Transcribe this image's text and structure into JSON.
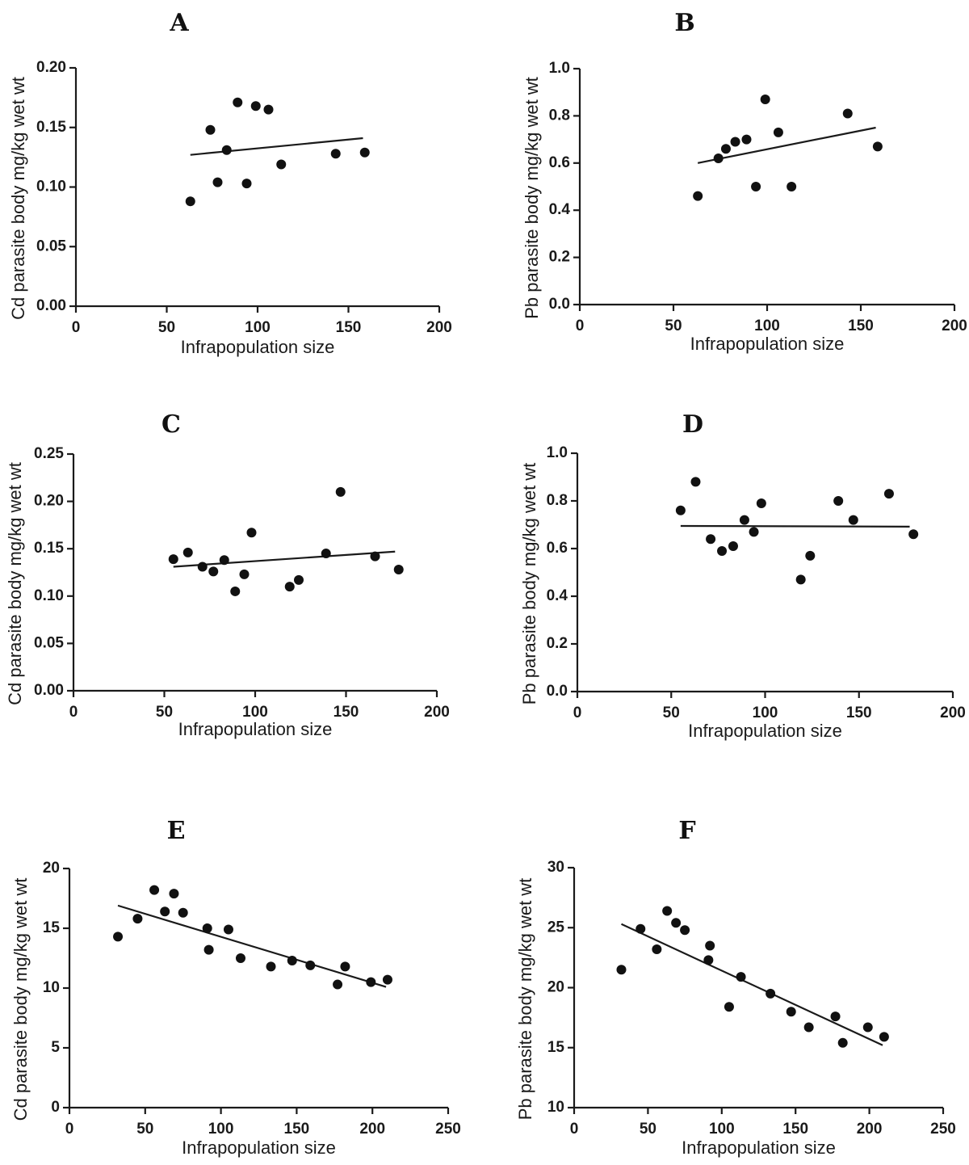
{
  "chart_data": [
    {
      "type": "scatter",
      "panel": "A",
      "xlabel": "Infrapopulation size",
      "ylabel": "Cd parasite body mg/kg wet wt",
      "xlim": [
        0,
        200
      ],
      "ylim": [
        0,
        0.2
      ],
      "xticks": [
        "0",
        "50",
        "100",
        "150",
        "200"
      ],
      "yticks": [
        "0.00",
        "0.05",
        "0.10",
        "0.15",
        "0.20"
      ],
      "points": [
        [
          63,
          0.088
        ],
        [
          74,
          0.148
        ],
        [
          78,
          0.104
        ],
        [
          83,
          0.131
        ],
        [
          89,
          0.171
        ],
        [
          94,
          0.103
        ],
        [
          99,
          0.168
        ],
        [
          106,
          0.165
        ],
        [
          113,
          0.119
        ],
        [
          143,
          0.128
        ],
        [
          159,
          0.129
        ]
      ],
      "fit_line": [
        [
          63,
          0.127
        ],
        [
          158,
          0.141
        ]
      ]
    },
    {
      "type": "scatter",
      "panel": "B",
      "xlabel": "Infrapopulation size",
      "ylabel": "Pb parasite body mg/kg wet wt",
      "xlim": [
        0,
        200
      ],
      "ylim": [
        0,
        1.0
      ],
      "xticks": [
        "0",
        "50",
        "100",
        "150",
        "200"
      ],
      "yticks": [
        "0.0",
        "0.2",
        "0.4",
        "0.6",
        "0.8",
        "1.0"
      ],
      "points": [
        [
          63,
          0.46
        ],
        [
          74,
          0.62
        ],
        [
          78,
          0.66
        ],
        [
          83,
          0.69
        ],
        [
          89,
          0.7
        ],
        [
          94,
          0.5
        ],
        [
          99,
          0.87
        ],
        [
          106,
          0.73
        ],
        [
          113,
          0.5
        ],
        [
          143,
          0.81
        ],
        [
          159,
          0.67
        ]
      ],
      "fit_line": [
        [
          63,
          0.6
        ],
        [
          158,
          0.75
        ]
      ]
    },
    {
      "type": "scatter",
      "panel": "C",
      "xlabel": "Infrapopulation size",
      "ylabel": "Cd parasite body mg/kg wet wt",
      "xlim": [
        0,
        200
      ],
      "ylim": [
        0,
        0.25
      ],
      "xticks": [
        "0",
        "50",
        "100",
        "150",
        "200"
      ],
      "yticks": [
        "0.00",
        "0.05",
        "0.10",
        "0.15",
        "0.20",
        "0.25"
      ],
      "points": [
        [
          55,
          0.139
        ],
        [
          63,
          0.146
        ],
        [
          71,
          0.131
        ],
        [
          77,
          0.126
        ],
        [
          83,
          0.138
        ],
        [
          89,
          0.105
        ],
        [
          94,
          0.123
        ],
        [
          98,
          0.167
        ],
        [
          119,
          0.11
        ],
        [
          124,
          0.117
        ],
        [
          139,
          0.145
        ],
        [
          147,
          0.21
        ],
        [
          166,
          0.142
        ],
        [
          179,
          0.128
        ]
      ],
      "fit_line": [
        [
          55,
          0.131
        ],
        [
          177,
          0.147
        ]
      ]
    },
    {
      "type": "scatter",
      "panel": "D",
      "xlabel": "Infrapopulation size",
      "ylabel": "Pb parasite body mg/kg wet wt",
      "xlim": [
        0,
        200
      ],
      "ylim": [
        0,
        1.0
      ],
      "xticks": [
        "0",
        "50",
        "100",
        "150",
        "200"
      ],
      "yticks": [
        "0.0",
        "0.2",
        "0.4",
        "0.6",
        "0.8",
        "1.0"
      ],
      "points": [
        [
          55,
          0.76
        ],
        [
          63,
          0.88
        ],
        [
          71,
          0.64
        ],
        [
          77,
          0.59
        ],
        [
          83,
          0.61
        ],
        [
          89,
          0.72
        ],
        [
          94,
          0.67
        ],
        [
          98,
          0.79
        ],
        [
          119,
          0.47
        ],
        [
          124,
          0.57
        ],
        [
          139,
          0.8
        ],
        [
          147,
          0.72
        ],
        [
          166,
          0.83
        ],
        [
          179,
          0.66
        ]
      ],
      "fit_line": [
        [
          55,
          0.695
        ],
        [
          177,
          0.692
        ]
      ]
    },
    {
      "type": "scatter",
      "panel": "E",
      "xlabel": "Infrapopulation size",
      "ylabel": "Cd parasite body mg/kg wet wt",
      "xlim": [
        0,
        250
      ],
      "ylim": [
        0,
        20
      ],
      "xticks": [
        "0",
        "50",
        "100",
        "150",
        "200",
        "250"
      ],
      "yticks": [
        "0",
        "5",
        "10",
        "15",
        "20"
      ],
      "points": [
        [
          32,
          14.3
        ],
        [
          45,
          15.8
        ],
        [
          56,
          18.2
        ],
        [
          63,
          16.4
        ],
        [
          69,
          17.9
        ],
        [
          75,
          16.3
        ],
        [
          91,
          15.0
        ],
        [
          92,
          13.2
        ],
        [
          105,
          14.9
        ],
        [
          113,
          12.5
        ],
        [
          133,
          11.8
        ],
        [
          147,
          12.3
        ],
        [
          159,
          11.9
        ],
        [
          177,
          10.3
        ],
        [
          182,
          11.8
        ],
        [
          199,
          10.5
        ],
        [
          210,
          10.7
        ]
      ],
      "fit_line": [
        [
          32,
          16.9
        ],
        [
          209,
          10.1
        ]
      ]
    },
    {
      "type": "scatter",
      "panel": "F",
      "xlabel": "Infrapopulation size",
      "ylabel": "Pb parasite body mg/kg wet wt",
      "xlim": [
        0,
        250
      ],
      "ylim": [
        10,
        30
      ],
      "xticks": [
        "0",
        "50",
        "100",
        "150",
        "200",
        "250"
      ],
      "yticks": [
        "10",
        "15",
        "20",
        "25",
        "30"
      ],
      "points": [
        [
          32,
          21.5
        ],
        [
          45,
          24.9
        ],
        [
          56,
          23.2
        ],
        [
          63,
          26.4
        ],
        [
          69,
          25.4
        ],
        [
          75,
          24.8
        ],
        [
          91,
          22.3
        ],
        [
          92,
          23.5
        ],
        [
          105,
          18.4
        ],
        [
          113,
          20.9
        ],
        [
          133,
          19.5
        ],
        [
          147,
          18.0
        ],
        [
          159,
          16.7
        ],
        [
          177,
          17.6
        ],
        [
          182,
          15.4
        ],
        [
          199,
          16.7
        ],
        [
          210,
          15.9
        ]
      ],
      "fit_line": [
        [
          32,
          25.3
        ],
        [
          209,
          15.2
        ]
      ]
    }
  ]
}
